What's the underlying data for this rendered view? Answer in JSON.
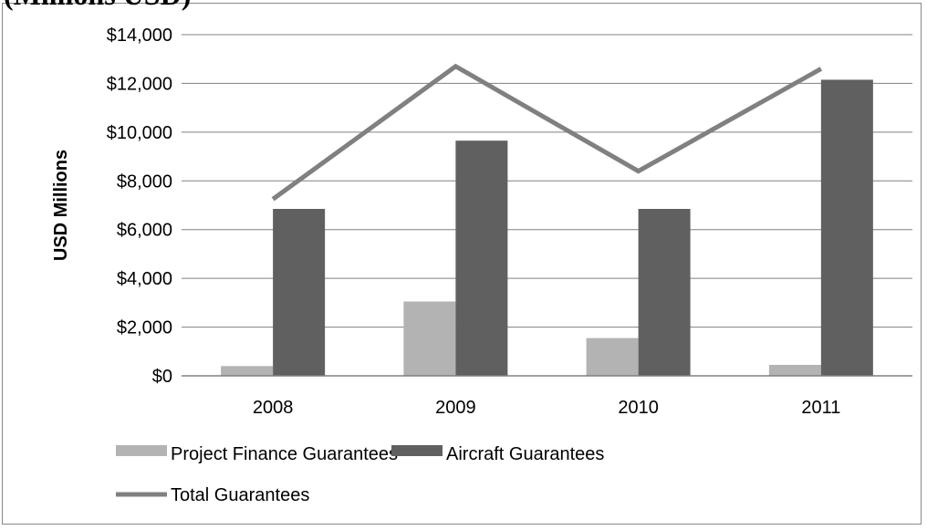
{
  "header": {
    "partial_title": "(Millions USD)"
  },
  "chart_data": {
    "type": "bar",
    "ylabel": "USD Millions",
    "ylim": [
      0,
      14000
    ],
    "yticks": [
      0,
      2000,
      4000,
      6000,
      8000,
      10000,
      12000,
      14000
    ],
    "ytick_labels": [
      "$0",
      "$2,000",
      "$4,000",
      "$6,000",
      "$8,000",
      "$10,000",
      "$12,000",
      "$14,000"
    ],
    "categories": [
      "2008",
      "2009",
      "2010",
      "2011"
    ],
    "grid": true,
    "legend_position": "bottom",
    "series": [
      {
        "name": "Project Finance Guarantees",
        "kind": "bar",
        "color": "#b3b3b3",
        "values": [
          400,
          3050,
          1550,
          450
        ]
      },
      {
        "name": "Aircraft Guarantees",
        "kind": "bar",
        "color": "#606060",
        "values": [
          6850,
          9650,
          6850,
          12150
        ]
      },
      {
        "name": "Total Guarantees",
        "kind": "line",
        "color": "#808080",
        "values": [
          7250,
          12700,
          8400,
          12600
        ]
      }
    ]
  }
}
